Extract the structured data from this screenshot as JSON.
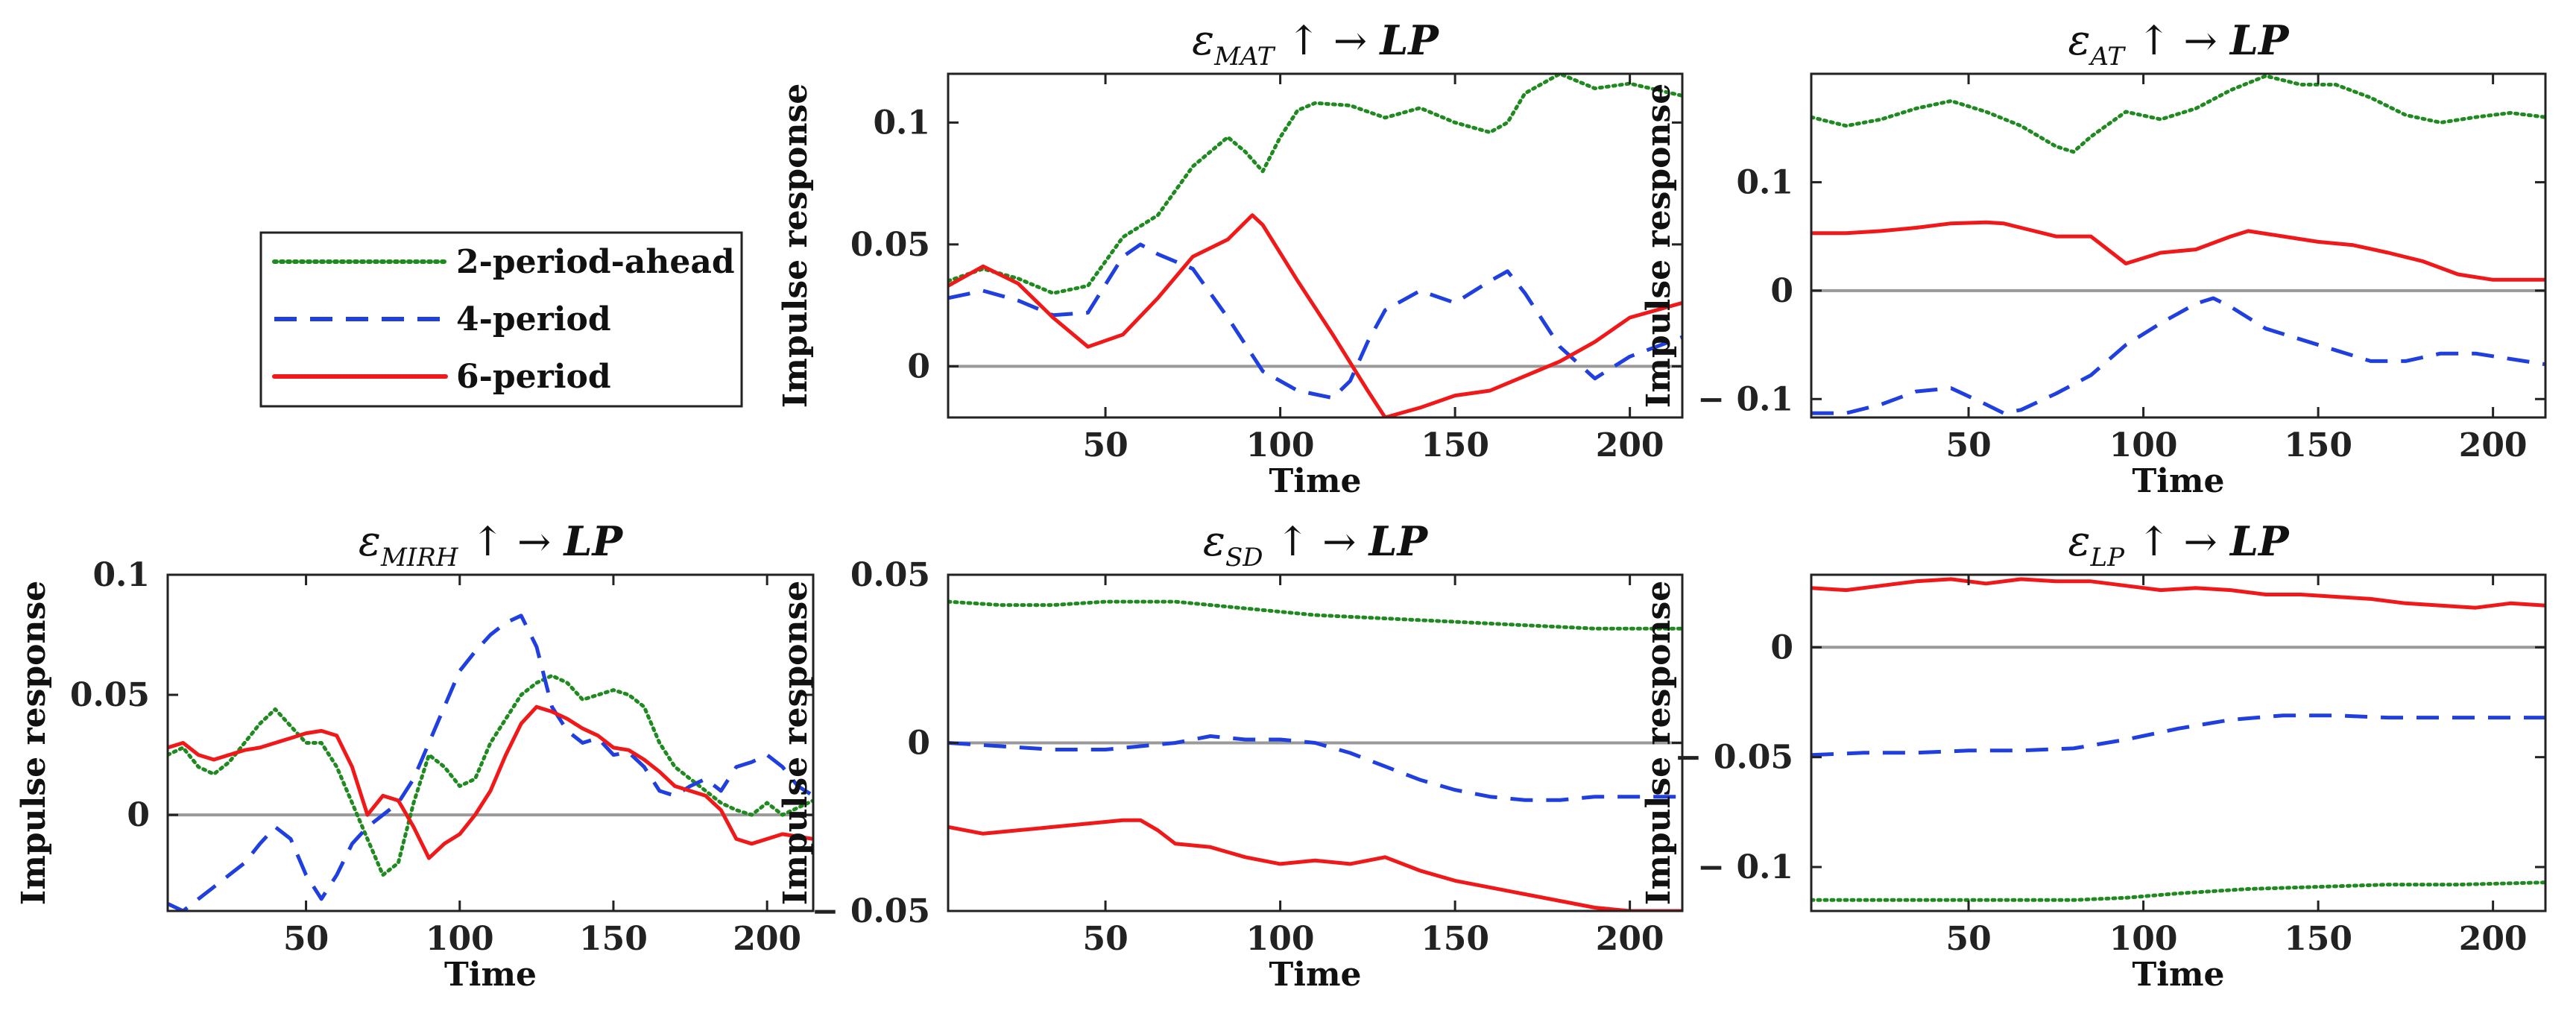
{
  "legend": {
    "entries": [
      {
        "label": "2-period-ahead",
        "color": "#1f8a1f",
        "dash": "dotted"
      },
      {
        "label": "4-period",
        "color": "#1f3fe0",
        "dash": "dashed"
      },
      {
        "label": "6-period",
        "color": "#f01818",
        "dash": "solid"
      }
    ]
  },
  "chart_data": [
    {
      "type": "line",
      "title": {
        "shock": "ε",
        "sub": "MAT",
        "arrow": "↑ →",
        "target": "LP"
      },
      "xlabel": "Time",
      "ylabel": "Impulse response",
      "xlim": [
        5,
        215
      ],
      "ylim": [
        -0.021,
        0.12
      ],
      "xticks": [
        50,
        100,
        150,
        200
      ],
      "yticks": [
        {
          "v": 0,
          "label": "0"
        },
        {
          "v": 0.05,
          "label": "0.05"
        },
        {
          "v": 0.1,
          "label": "0.1"
        }
      ],
      "zero_line": true,
      "series": [
        {
          "name": "2-period-ahead",
          "x": [
            5,
            15,
            25,
            35,
            45,
            55,
            65,
            75,
            85,
            90,
            95,
            100,
            105,
            110,
            120,
            130,
            140,
            150,
            160,
            165,
            170,
            180,
            190,
            200,
            215
          ],
          "y": [
            0.035,
            0.04,
            0.036,
            0.03,
            0.033,
            0.053,
            0.062,
            0.082,
            0.094,
            0.088,
            0.08,
            0.094,
            0.105,
            0.108,
            0.107,
            0.102,
            0.106,
            0.1,
            0.096,
            0.1,
            0.112,
            0.12,
            0.114,
            0.116,
            0.111
          ]
        },
        {
          "name": "4-period",
          "x": [
            5,
            15,
            25,
            35,
            45,
            55,
            60,
            65,
            75,
            85,
            95,
            105,
            115,
            120,
            125,
            130,
            140,
            150,
            160,
            165,
            170,
            180,
            190,
            200,
            215
          ],
          "y": [
            0.028,
            0.031,
            0.027,
            0.021,
            0.022,
            0.045,
            0.05,
            0.046,
            0.04,
            0.02,
            -0.002,
            -0.01,
            -0.013,
            -0.006,
            0.01,
            0.023,
            0.031,
            0.026,
            0.035,
            0.039,
            0.03,
            0.008,
            -0.005,
            0.004,
            0.012
          ]
        },
        {
          "name": "6-period",
          "x": [
            5,
            15,
            25,
            35,
            45,
            55,
            65,
            75,
            85,
            92,
            95,
            105,
            115,
            125,
            130,
            140,
            150,
            160,
            170,
            180,
            190,
            200,
            215
          ],
          "y": [
            0.033,
            0.041,
            0.034,
            0.02,
            0.008,
            0.013,
            0.028,
            0.045,
            0.052,
            0.062,
            0.058,
            0.035,
            0.013,
            -0.01,
            -0.021,
            -0.017,
            -0.012,
            -0.01,
            -0.004,
            0.002,
            0.01,
            0.02,
            0.026
          ]
        }
      ]
    },
    {
      "type": "line",
      "title": {
        "shock": "ε",
        "sub": "AT",
        "arrow": "↑ →",
        "target": "LP"
      },
      "xlabel": "Time",
      "ylabel": "Impulse response",
      "xlim": [
        5,
        215
      ],
      "ylim": [
        -0.117,
        0.2
      ],
      "xticks": [
        50,
        100,
        150,
        200
      ],
      "yticks": [
        {
          "v": -0.1,
          "label": "− 0.1"
        },
        {
          "v": 0,
          "label": "0"
        },
        {
          "v": 0.1,
          "label": "0.1"
        }
      ],
      "zero_line": true,
      "series": [
        {
          "name": "2-period-ahead",
          "x": [
            5,
            15,
            25,
            35,
            45,
            55,
            65,
            75,
            80,
            85,
            95,
            105,
            115,
            125,
            135,
            145,
            155,
            165,
            175,
            185,
            195,
            205,
            215
          ],
          "y": [
            0.16,
            0.152,
            0.158,
            0.168,
            0.175,
            0.165,
            0.152,
            0.133,
            0.128,
            0.142,
            0.165,
            0.158,
            0.168,
            0.185,
            0.198,
            0.19,
            0.19,
            0.178,
            0.162,
            0.155,
            0.16,
            0.164,
            0.16
          ]
        },
        {
          "name": "4-period",
          "x": [
            5,
            15,
            25,
            35,
            45,
            55,
            60,
            65,
            75,
            85,
            95,
            105,
            115,
            120,
            125,
            135,
            145,
            155,
            165,
            175,
            185,
            195,
            205,
            215
          ],
          "y": [
            -0.113,
            -0.113,
            -0.105,
            -0.093,
            -0.09,
            -0.105,
            -0.113,
            -0.11,
            -0.095,
            -0.078,
            -0.05,
            -0.03,
            -0.012,
            -0.007,
            -0.015,
            -0.035,
            -0.045,
            -0.055,
            -0.065,
            -0.065,
            -0.058,
            -0.058,
            -0.063,
            -0.068
          ]
        },
        {
          "name": "6-period",
          "x": [
            5,
            15,
            25,
            35,
            45,
            55,
            60,
            65,
            75,
            85,
            95,
            105,
            115,
            125,
            130,
            140,
            150,
            160,
            170,
            180,
            190,
            200,
            215
          ],
          "y": [
            0.053,
            0.053,
            0.055,
            0.058,
            0.062,
            0.063,
            0.062,
            0.058,
            0.05,
            0.05,
            0.025,
            0.035,
            0.038,
            0.05,
            0.055,
            0.05,
            0.045,
            0.042,
            0.035,
            0.027,
            0.015,
            0.01,
            0.01
          ]
        }
      ]
    },
    {
      "type": "line",
      "title": {
        "shock": "ε",
        "sub": "MIRH",
        "arrow": "↑ →",
        "target": "LP"
      },
      "xlabel": "Time",
      "ylabel": "Impulse response",
      "xlim": [
        5,
        215
      ],
      "ylim": [
        -0.04,
        0.1
      ],
      "xticks": [
        50,
        100,
        150,
        200
      ],
      "yticks": [
        {
          "v": 0,
          "label": "0"
        },
        {
          "v": 0.05,
          "label": "0.05"
        },
        {
          "v": 0.1,
          "label": "0.1"
        }
      ],
      "zero_line": true,
      "series": [
        {
          "name": "2-period-ahead",
          "x": [
            5,
            10,
            15,
            20,
            25,
            30,
            35,
            40,
            45,
            50,
            55,
            60,
            65,
            70,
            75,
            80,
            85,
            90,
            95,
            100,
            105,
            110,
            115,
            120,
            125,
            130,
            135,
            140,
            145,
            150,
            155,
            160,
            165,
            170,
            175,
            180,
            185,
            190,
            195,
            200,
            205,
            210,
            215
          ],
          "y": [
            0.025,
            0.028,
            0.02,
            0.017,
            0.022,
            0.03,
            0.038,
            0.044,
            0.037,
            0.03,
            0.03,
            0.02,
            0.005,
            -0.01,
            -0.025,
            -0.02,
            0.005,
            0.025,
            0.02,
            0.012,
            0.015,
            0.03,
            0.04,
            0.05,
            0.055,
            0.058,
            0.055,
            0.048,
            0.05,
            0.052,
            0.05,
            0.045,
            0.03,
            0.02,
            0.015,
            0.01,
            0.005,
            0.002,
            0.0,
            0.005,
            0.0,
            0.003,
            0.006
          ]
        },
        {
          "name": "4-period",
          "x": [
            5,
            10,
            15,
            20,
            25,
            30,
            35,
            40,
            45,
            50,
            55,
            60,
            65,
            70,
            75,
            80,
            85,
            90,
            95,
            100,
            105,
            110,
            115,
            120,
            125,
            130,
            135,
            140,
            145,
            150,
            155,
            160,
            165,
            170,
            175,
            180,
            185,
            190,
            195,
            200,
            205,
            210,
            215
          ],
          "y": [
            -0.037,
            -0.04,
            -0.035,
            -0.03,
            -0.025,
            -0.02,
            -0.012,
            -0.005,
            -0.01,
            -0.025,
            -0.035,
            -0.025,
            -0.012,
            -0.005,
            0.0,
            0.005,
            0.015,
            0.03,
            0.045,
            0.06,
            0.068,
            0.075,
            0.08,
            0.083,
            0.07,
            0.045,
            0.035,
            0.03,
            0.032,
            0.025,
            0.026,
            0.02,
            0.01,
            0.008,
            0.012,
            0.015,
            0.01,
            0.02,
            0.022,
            0.025,
            0.02,
            0.012,
            0.008
          ]
        },
        {
          "name": "6-period",
          "x": [
            5,
            10,
            15,
            20,
            25,
            30,
            35,
            40,
            45,
            50,
            55,
            60,
            65,
            70,
            75,
            80,
            85,
            90,
            95,
            100,
            105,
            110,
            115,
            120,
            125,
            130,
            135,
            140,
            145,
            150,
            155,
            160,
            165,
            170,
            175,
            180,
            185,
            190,
            195,
            200,
            205,
            210,
            215
          ],
          "y": [
            0.028,
            0.03,
            0.025,
            0.023,
            0.025,
            0.027,
            0.028,
            0.03,
            0.032,
            0.034,
            0.035,
            0.033,
            0.02,
            0.0,
            0.008,
            0.006,
            -0.005,
            -0.018,
            -0.012,
            -0.008,
            0.0,
            0.01,
            0.025,
            0.038,
            0.045,
            0.043,
            0.04,
            0.036,
            0.033,
            0.028,
            0.027,
            0.023,
            0.018,
            0.012,
            0.01,
            0.008,
            0.002,
            -0.01,
            -0.012,
            -0.01,
            -0.008,
            -0.009,
            -0.01
          ]
        }
      ]
    },
    {
      "type": "line",
      "title": {
        "shock": "ε",
        "sub": "SD",
        "arrow": "↑ →",
        "target": "LP"
      },
      "xlabel": "Time",
      "ylabel": "Impulse response",
      "xlim": [
        5,
        215
      ],
      "ylim": [
        -0.05,
        0.05
      ],
      "xticks": [
        50,
        100,
        150,
        200
      ],
      "yticks": [
        {
          "v": -0.05,
          "label": "− 0.05"
        },
        {
          "v": 0,
          "label": "0"
        },
        {
          "v": 0.05,
          "label": "0.05"
        }
      ],
      "zero_line": true,
      "series": [
        {
          "name": "2-period-ahead",
          "x": [
            5,
            20,
            35,
            50,
            70,
            90,
            110,
            130,
            150,
            170,
            190,
            215
          ],
          "y": [
            0.042,
            0.041,
            0.041,
            0.042,
            0.042,
            0.04,
            0.038,
            0.037,
            0.036,
            0.035,
            0.034,
            0.034
          ]
        },
        {
          "name": "4-period",
          "x": [
            5,
            20,
            35,
            50,
            60,
            70,
            80,
            90,
            100,
            110,
            120,
            130,
            140,
            150,
            160,
            170,
            180,
            190,
            200,
            215
          ],
          "y": [
            0.0,
            -0.001,
            -0.002,
            -0.002,
            -0.001,
            0.0,
            0.002,
            0.001,
            0.001,
            0.0,
            -0.003,
            -0.007,
            -0.011,
            -0.014,
            -0.016,
            -0.017,
            -0.017,
            -0.016,
            -0.016,
            -0.016
          ]
        },
        {
          "name": "6-period",
          "x": [
            5,
            15,
            25,
            35,
            45,
            55,
            60,
            65,
            70,
            80,
            90,
            100,
            110,
            120,
            130,
            140,
            150,
            160,
            170,
            180,
            190,
            200,
            215
          ],
          "y": [
            -0.025,
            -0.027,
            -0.026,
            -0.025,
            -0.024,
            -0.023,
            -0.023,
            -0.026,
            -0.03,
            -0.031,
            -0.034,
            -0.036,
            -0.035,
            -0.036,
            -0.034,
            -0.038,
            -0.041,
            -0.043,
            -0.045,
            -0.047,
            -0.049,
            -0.05,
            -0.05
          ]
        }
      ]
    },
    {
      "type": "line",
      "title": {
        "shock": "ε",
        "sub": "LP",
        "arrow": "↑ →",
        "target": "LP"
      },
      "xlabel": "Time",
      "ylabel": "Impulse response",
      "xlim": [
        5,
        215
      ],
      "ylim": [
        -0.12,
        0.033
      ],
      "xticks": [
        50,
        100,
        150,
        200
      ],
      "yticks": [
        {
          "v": -0.1,
          "label": "− 0.1"
        },
        {
          "v": -0.05,
          "label": "− 0.05"
        },
        {
          "v": 0,
          "label": "0"
        }
      ],
      "zero_line": true,
      "series": [
        {
          "name": "2-period-ahead",
          "x": [
            5,
            30,
            55,
            80,
            95,
            110,
            130,
            150,
            170,
            190,
            215
          ],
          "y": [
            -0.115,
            -0.115,
            -0.115,
            -0.115,
            -0.114,
            -0.112,
            -0.11,
            -0.109,
            -0.108,
            -0.108,
            -0.107
          ]
        },
        {
          "name": "4-period",
          "x": [
            5,
            20,
            35,
            50,
            65,
            80,
            95,
            110,
            125,
            140,
            155,
            170,
            185,
            200,
            215
          ],
          "y": [
            -0.049,
            -0.048,
            -0.048,
            -0.047,
            -0.047,
            -0.046,
            -0.042,
            -0.037,
            -0.033,
            -0.031,
            -0.031,
            -0.032,
            -0.032,
            -0.032,
            -0.032
          ]
        },
        {
          "name": "6-period",
          "x": [
            5,
            15,
            25,
            35,
            45,
            55,
            65,
            75,
            85,
            95,
            105,
            115,
            125,
            135,
            145,
            155,
            165,
            175,
            185,
            195,
            205,
            215
          ],
          "y": [
            0.027,
            0.026,
            0.028,
            0.03,
            0.031,
            0.029,
            0.031,
            0.03,
            0.03,
            0.028,
            0.026,
            0.027,
            0.026,
            0.024,
            0.024,
            0.023,
            0.022,
            0.02,
            0.019,
            0.018,
            0.02,
            0.019
          ]
        }
      ]
    }
  ]
}
